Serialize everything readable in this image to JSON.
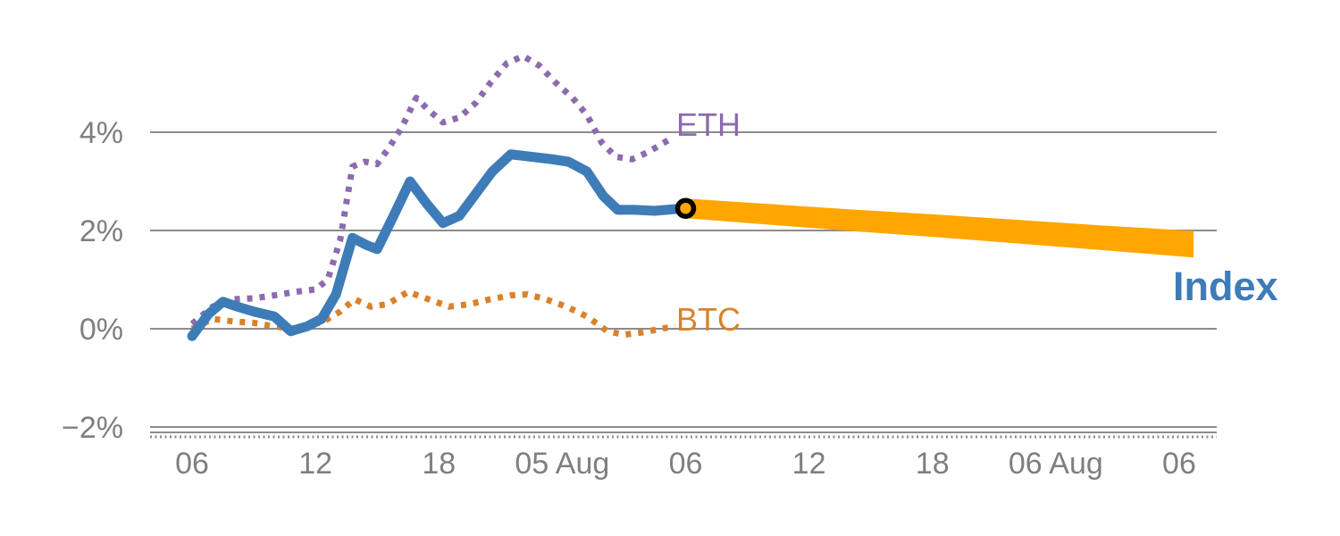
{
  "chart_data": {
    "type": "line",
    "title": "",
    "xlabel": "",
    "ylabel": "",
    "grid": "horizontal",
    "legend_position": "inline-labels",
    "x_axis": {
      "unit": "hours",
      "tick_hours": [
        0,
        6,
        12,
        18,
        24,
        30,
        36,
        42,
        48
      ],
      "tick_labels": [
        "06",
        "12",
        "18",
        "05 Aug",
        "06",
        "12",
        "18",
        "06 Aug",
        "06"
      ]
    },
    "y_axis": {
      "range": [
        -2.2,
        6.2
      ],
      "ticks": [
        {
          "value": 4,
          "label": "4%"
        },
        {
          "value": 2,
          "label": "2%"
        },
        {
          "value": 0,
          "label": "0%"
        },
        {
          "value": -2,
          "label": "−2%"
        }
      ]
    },
    "colors": {
      "index_blue": "#3e7cb8",
      "eth_purple": "#8c6bae",
      "btc_orange": "#d9822b",
      "forecast_orange": "#ffa600",
      "axis_gray": "#8c8c8c",
      "label_gray": "#7f7f7f",
      "marker_ring": "#000000"
    },
    "series": [
      {
        "name": "Index",
        "type": "line",
        "style": "solid",
        "color": "#3e7cb8",
        "points": [
          [
            0,
            -0.15
          ],
          [
            0.8,
            0.3
          ],
          [
            1.5,
            0.55
          ],
          [
            2.2,
            0.45
          ],
          [
            3,
            0.35
          ],
          [
            4,
            0.25
          ],
          [
            4.8,
            -0.05
          ],
          [
            5.6,
            0.05
          ],
          [
            6.3,
            0.2
          ],
          [
            7,
            0.7
          ],
          [
            7.8,
            1.85
          ],
          [
            8.5,
            1.7
          ],
          [
            9,
            1.62
          ],
          [
            9.8,
            2.3
          ],
          [
            10.6,
            3.0
          ],
          [
            11.4,
            2.55
          ],
          [
            12.2,
            2.15
          ],
          [
            13,
            2.3
          ],
          [
            13.8,
            2.75
          ],
          [
            14.6,
            3.2
          ],
          [
            15.5,
            3.55
          ],
          [
            16.5,
            3.5
          ],
          [
            17.5,
            3.45
          ],
          [
            18.3,
            3.4
          ],
          [
            19.2,
            3.2
          ],
          [
            20,
            2.7
          ],
          [
            20.7,
            2.42
          ],
          [
            21.5,
            2.42
          ],
          [
            22.5,
            2.4
          ],
          [
            23.9,
            2.45
          ]
        ]
      },
      {
        "name": "ETH",
        "type": "line",
        "style": "dotted",
        "color": "#8c6bae",
        "points": [
          [
            0,
            0.1
          ],
          [
            1,
            0.45
          ],
          [
            2,
            0.6
          ],
          [
            3,
            0.62
          ],
          [
            4,
            0.68
          ],
          [
            5,
            0.75
          ],
          [
            6,
            0.8
          ],
          [
            6.6,
            1.0
          ],
          [
            7.2,
            1.8
          ],
          [
            7.8,
            3.3
          ],
          [
            8.4,
            3.4
          ],
          [
            9,
            3.35
          ],
          [
            9.6,
            3.7
          ],
          [
            10.2,
            4.1
          ],
          [
            10.9,
            4.7
          ],
          [
            11.5,
            4.45
          ],
          [
            12.2,
            4.2
          ],
          [
            13,
            4.3
          ],
          [
            13.8,
            4.6
          ],
          [
            14.5,
            5.0
          ],
          [
            15.3,
            5.4
          ],
          [
            16.1,
            5.55
          ],
          [
            16.9,
            5.35
          ],
          [
            17.7,
            5.0
          ],
          [
            18.5,
            4.7
          ],
          [
            19.2,
            4.35
          ],
          [
            19.9,
            3.8
          ],
          [
            20.6,
            3.5
          ],
          [
            21.4,
            3.45
          ],
          [
            22.2,
            3.6
          ],
          [
            23.2,
            3.85
          ]
        ]
      },
      {
        "name": "BTC",
        "type": "line",
        "style": "dotted",
        "color": "#d9822b",
        "points": [
          [
            0,
            0.0
          ],
          [
            1,
            0.2
          ],
          [
            2,
            0.15
          ],
          [
            3,
            0.12
          ],
          [
            4,
            0.05
          ],
          [
            4.8,
            0.0
          ],
          [
            5.6,
            0.05
          ],
          [
            6.4,
            0.15
          ],
          [
            7.2,
            0.35
          ],
          [
            7.9,
            0.6
          ],
          [
            8.7,
            0.45
          ],
          [
            9.5,
            0.5
          ],
          [
            10.5,
            0.75
          ],
          [
            11.5,
            0.6
          ],
          [
            12.5,
            0.45
          ],
          [
            13.5,
            0.5
          ],
          [
            14.5,
            0.6
          ],
          [
            15.5,
            0.68
          ],
          [
            16.3,
            0.7
          ],
          [
            17.2,
            0.6
          ],
          [
            18.2,
            0.45
          ],
          [
            19.2,
            0.25
          ],
          [
            20.2,
            -0.05
          ],
          [
            21,
            -0.12
          ],
          [
            21.8,
            -0.08
          ],
          [
            22.8,
            0.0
          ],
          [
            23.5,
            0.05
          ]
        ]
      },
      {
        "name": "Index forecast",
        "type": "band",
        "color": "#ffa600",
        "x": [
          24,
          28,
          32,
          36,
          40,
          44,
          48.7
        ],
        "mean": [
          2.45,
          2.33,
          2.21,
          2.1,
          1.98,
          1.86,
          1.72
        ],
        "half_width": [
          0.2,
          0.21,
          0.22,
          0.23,
          0.24,
          0.25,
          0.27
        ]
      }
    ],
    "marker": {
      "hour": 24,
      "value": 2.45
    }
  }
}
